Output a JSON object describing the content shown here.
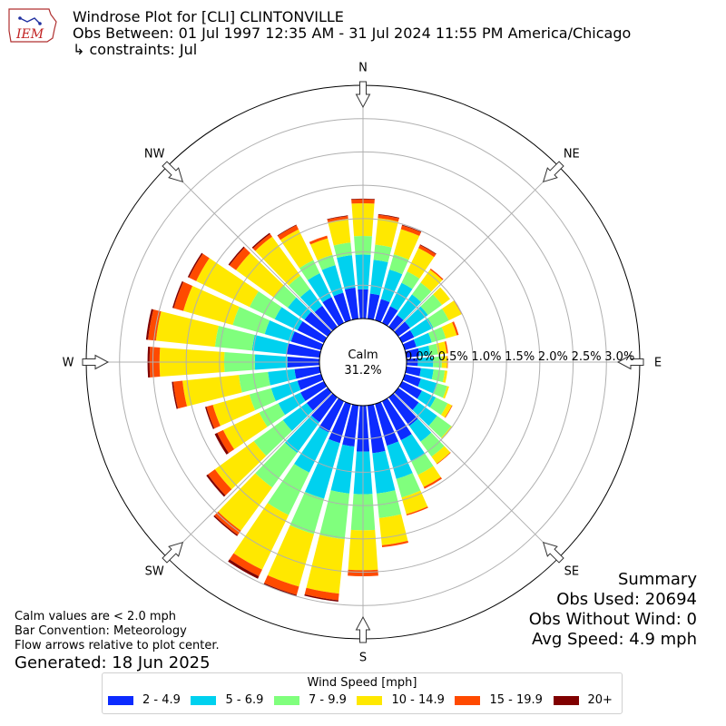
{
  "header": {
    "logo_text": "IEM",
    "title": "Windrose Plot for [CLI] CLINTONVILLE",
    "subtitle": "Obs Between: 01 Jul 1997 12:35 AM - 31 Jul 2024 11:55 PM America/Chicago",
    "constraints": "↳ constraints: Jul"
  },
  "notes": {
    "calm_note": "Calm values are < 2.0 mph",
    "bar_convention": "Bar Convention: Meteorology",
    "flow_note": "Flow arrows relative to plot center.",
    "generated": "Generated: 18 Jun 2025"
  },
  "summary": {
    "heading": "Summary",
    "obs_used": "Obs Used: 20694",
    "obs_without_wind": "Obs Without Wind: 0",
    "avg_speed": "Avg Speed: 4.9 mph"
  },
  "legend": {
    "title": "Wind Speed [mph]",
    "items": [
      {
        "label": "2 - 4.9",
        "color": "#0c2bff"
      },
      {
        "label": "5 - 6.9",
        "color": "#00d1ef"
      },
      {
        "label": "7 - 9.9",
        "color": "#80ff7d"
      },
      {
        "label": "10 - 14.9",
        "color": "#ffe800"
      },
      {
        "label": "15 - 19.9",
        "color": "#ff4a00"
      },
      {
        "label": "20+",
        "color": "#800000"
      }
    ]
  },
  "chart_data": {
    "type": "windrose",
    "calm_label": "Calm",
    "calm_value": "31.2%",
    "calm_percent": 31.2,
    "direction_labels": [
      "N",
      "NE",
      "E",
      "SE",
      "S",
      "SW",
      "W",
      "NW"
    ],
    "radial_tick_labels": [
      "0.0%",
      "0.5%",
      "1.0%",
      "1.5%",
      "2.0%",
      "2.5%",
      "3.0%"
    ],
    "radial_ticks": [
      0,
      0.5,
      1.0,
      1.5,
      2.0,
      2.5,
      3.0
    ],
    "rmax": 3.5,
    "bin_width_deg": 10,
    "bar_convention": "meteorology",
    "speed_bins": [
      "2 - 4.9",
      "5 - 6.9",
      "7 - 9.9",
      "10 - 14.9",
      "15 - 19.9",
      "20+"
    ],
    "directions": [
      0,
      10,
      20,
      30,
      40,
      50,
      60,
      70,
      80,
      90,
      100,
      110,
      120,
      130,
      140,
      150,
      160,
      170,
      180,
      190,
      200,
      210,
      220,
      230,
      240,
      250,
      260,
      270,
      280,
      290,
      300,
      310,
      320,
      330,
      340,
      350
    ],
    "cumulative_percent": [
      [
        0.44,
        0.96,
        1.24,
        1.73,
        1.79,
        1.8
      ],
      [
        0.38,
        0.89,
        1.12,
        1.52,
        1.57,
        1.58
      ],
      [
        0.33,
        0.79,
        1.03,
        1.42,
        1.48,
        1.49
      ],
      [
        0.28,
        0.67,
        0.86,
        1.25,
        1.3,
        1.31
      ],
      [
        0.22,
        0.6,
        0.82,
        1.06,
        1.08,
        1.08
      ],
      [
        0.22,
        0.55,
        0.81,
        0.96,
        0.96,
        0.96
      ],
      [
        0.2,
        0.52,
        0.78,
        0.99,
        1.0,
        1.0
      ],
      [
        0.18,
        0.42,
        0.64,
        0.81,
        0.84,
        0.84
      ],
      [
        0.2,
        0.36,
        0.48,
        0.61,
        0.63,
        0.63
      ],
      [
        0.17,
        0.4,
        0.53,
        0.61,
        0.62,
        0.62
      ],
      [
        0.22,
        0.41,
        0.58,
        0.62,
        0.62,
        0.62
      ],
      [
        0.25,
        0.51,
        0.66,
        0.69,
        0.69,
        0.69
      ],
      [
        0.33,
        0.56,
        0.76,
        0.83,
        0.84,
        0.84
      ],
      [
        0.38,
        0.72,
        0.98,
        1.0,
        1.0,
        1.0
      ],
      [
        0.53,
        0.82,
        1.1,
        1.23,
        1.24,
        1.24
      ],
      [
        0.65,
        1.01,
        1.23,
        1.43,
        1.46,
        1.46
      ],
      [
        0.65,
        1.17,
        1.46,
        1.72,
        1.74,
        1.74
      ],
      [
        0.72,
        1.33,
        1.7,
        2.11,
        2.14,
        2.14
      ],
      [
        0.69,
        1.33,
        1.87,
        2.47,
        2.56,
        2.56
      ],
      [
        0.62,
        1.33,
        2.02,
        2.84,
        2.94,
        2.96
      ],
      [
        0.61,
        1.48,
        2.03,
        2.85,
        2.98,
        3.0
      ],
      [
        0.52,
        1.19,
        1.9,
        2.81,
        2.92,
        2.96
      ],
      [
        0.46,
        1.03,
        1.67,
        2.47,
        2.55,
        2.57
      ],
      [
        0.39,
        0.83,
        1.37,
        2.09,
        2.22,
        2.25
      ],
      [
        0.39,
        0.76,
        1.08,
        1.68,
        1.78,
        1.82
      ],
      [
        0.37,
        0.78,
        1.12,
        1.69,
        1.79,
        1.81
      ],
      [
        0.38,
        0.78,
        1.22,
        2.07,
        2.21,
        2.23
      ],
      [
        0.48,
        0.97,
        1.43,
        2.4,
        2.55,
        2.58
      ],
      [
        0.5,
        1.02,
        1.58,
        2.47,
        2.59,
        2.62
      ],
      [
        0.47,
        0.88,
        1.38,
        2.15,
        2.3,
        2.32
      ],
      [
        0.44,
        0.82,
        1.24,
        2.13,
        2.25,
        2.27
      ],
      [
        0.43,
        0.74,
        1.0,
        1.7,
        1.82,
        1.84
      ],
      [
        0.39,
        0.7,
        0.95,
        1.67,
        1.72,
        1.74
      ],
      [
        0.43,
        0.83,
        1.05,
        1.56,
        1.63,
        1.64
      ],
      [
        0.43,
        0.86,
        1.02,
        1.28,
        1.32,
        1.32
      ],
      [
        0.47,
        0.96,
        1.15,
        1.51,
        1.55,
        1.56
      ]
    ]
  }
}
